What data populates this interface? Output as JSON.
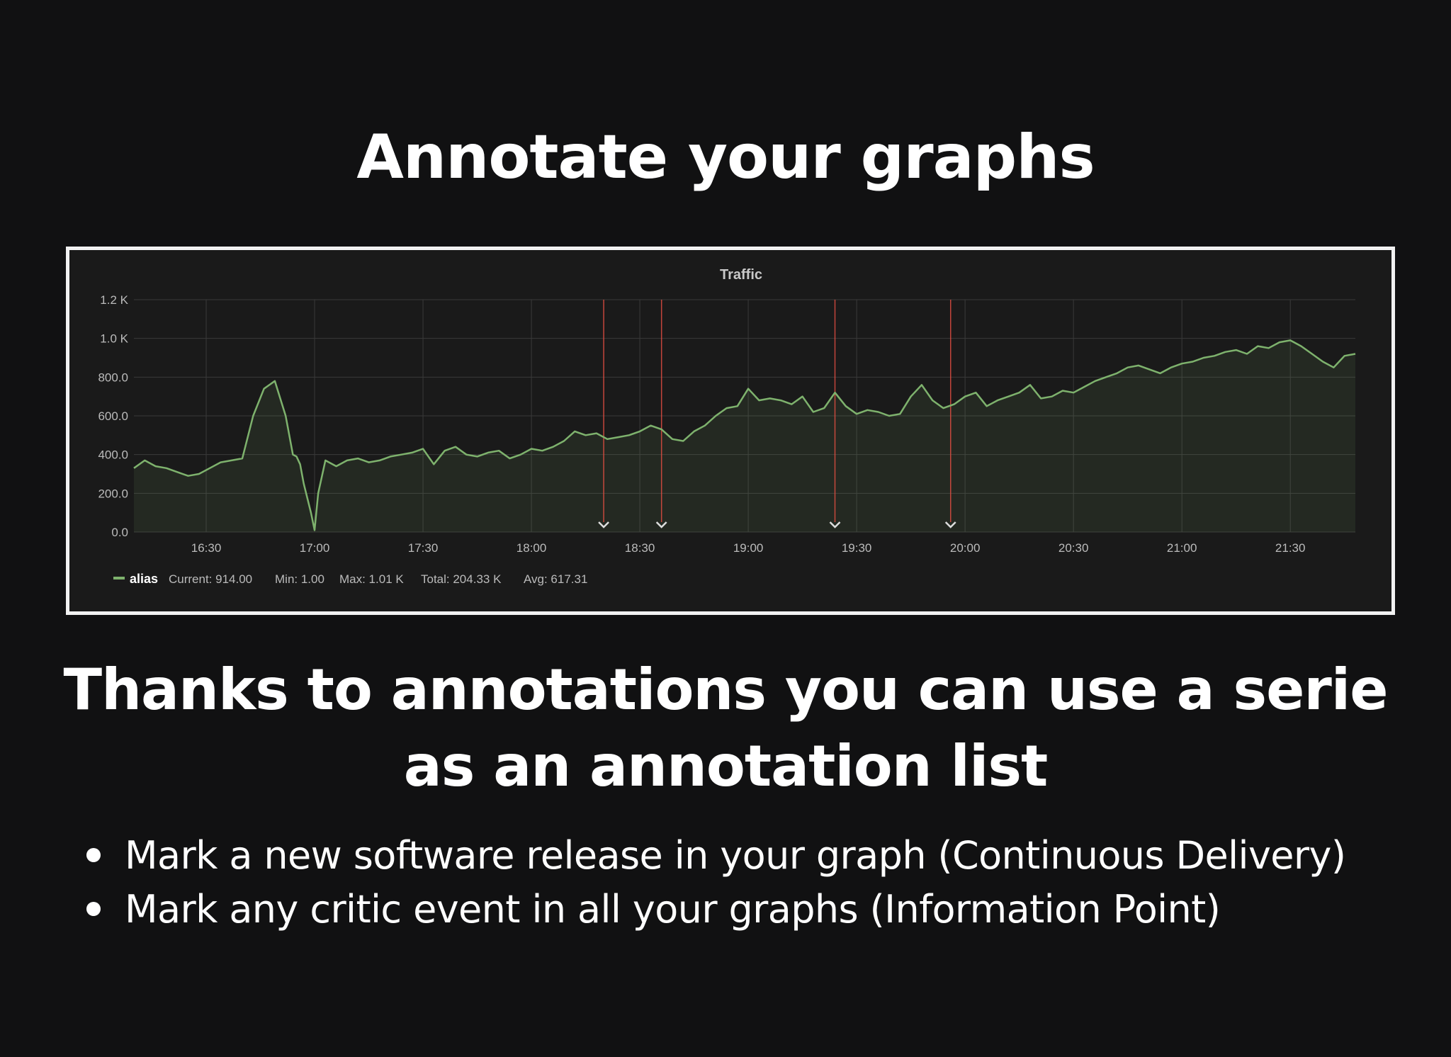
{
  "slide": {
    "title": "Annotate your graphs",
    "subtitle_lines": [
      "Thanks to annotations you can use a serie",
      "as an annotation list"
    ],
    "bullets": [
      "Mark a new software release in your graph (Continuous Delivery)",
      "Mark any critic event in all your graphs (Information Point)"
    ]
  },
  "panel": {
    "legend": {
      "series_name": "alias",
      "current": "Current: 914.00",
      "min": "Min: 1.00",
      "max": "Max: 1.01 K",
      "total": "Total: 204.33 K",
      "avg": "Avg: 617.31"
    }
  },
  "colors": {
    "background": "#111112",
    "panel_bg": "#1a1a1a",
    "series_line": "#7eb26d",
    "series_fill": "#7eb26d",
    "annotation_line": "#e24d42",
    "grid": "#3a3a3a",
    "axis_text": "#bbbbbb",
    "frame": "#f2f2f2"
  },
  "chart_data": {
    "type": "line",
    "title": "Traffic",
    "x_start": "16:10",
    "x_end": "21:48",
    "x_ticks": [
      "16:30",
      "17:00",
      "17:30",
      "18:00",
      "18:30",
      "19:00",
      "19:30",
      "20:00",
      "20:30",
      "21:00",
      "21:30"
    ],
    "y_ticks": [
      "0.0",
      "200.0",
      "400.0",
      "600.0",
      "800.0",
      "1.0 K",
      "1.2 K"
    ],
    "ylim": [
      0,
      1200
    ],
    "grid": true,
    "fill": true,
    "annotations": [
      "18:20",
      "18:36",
      "19:24",
      "19:56"
    ],
    "series": [
      {
        "name": "alias",
        "x": [
          "16:10",
          "16:13",
          "16:16",
          "16:19",
          "16:22",
          "16:25",
          "16:28",
          "16:31",
          "16:34",
          "16:37",
          "16:40",
          "16:43",
          "16:46",
          "16:49",
          "16:52",
          "16:54",
          "16:55",
          "16:56",
          "16:57",
          "16:59",
          "17:00",
          "17:01",
          "17:03",
          "17:06",
          "17:09",
          "17:12",
          "17:15",
          "17:18",
          "17:21",
          "17:24",
          "17:27",
          "17:30",
          "17:33",
          "17:36",
          "17:39",
          "17:42",
          "17:45",
          "17:48",
          "17:51",
          "17:54",
          "17:57",
          "18:00",
          "18:03",
          "18:06",
          "18:09",
          "18:12",
          "18:15",
          "18:18",
          "18:21",
          "18:24",
          "18:27",
          "18:30",
          "18:33",
          "18:36",
          "18:39",
          "18:42",
          "18:45",
          "18:48",
          "18:51",
          "18:54",
          "18:57",
          "19:00",
          "19:03",
          "19:06",
          "19:09",
          "19:12",
          "19:15",
          "19:18",
          "19:21",
          "19:24",
          "19:27",
          "19:30",
          "19:33",
          "19:36",
          "19:39",
          "19:42",
          "19:45",
          "19:48",
          "19:51",
          "19:54",
          "19:57",
          "20:00",
          "20:03",
          "20:06",
          "20:09",
          "20:12",
          "20:15",
          "20:18",
          "20:21",
          "20:24",
          "20:27",
          "20:30",
          "20:33",
          "20:36",
          "20:39",
          "20:42",
          "20:45",
          "20:48",
          "20:51",
          "20:54",
          "20:57",
          "21:00",
          "21:03",
          "21:06",
          "21:09",
          "21:12",
          "21:15",
          "21:18",
          "21:21",
          "21:24",
          "21:27",
          "21:30",
          "21:33",
          "21:36",
          "21:39",
          "21:42",
          "21:45",
          "21:48"
        ],
        "values": [
          330,
          370,
          340,
          330,
          310,
          290,
          300,
          330,
          360,
          370,
          380,
          600,
          740,
          780,
          600,
          400,
          390,
          350,
          250,
          100,
          10,
          200,
          370,
          340,
          370,
          380,
          360,
          370,
          390,
          400,
          410,
          430,
          350,
          420,
          440,
          400,
          390,
          410,
          420,
          380,
          400,
          430,
          420,
          440,
          470,
          520,
          500,
          510,
          480,
          490,
          500,
          520,
          550,
          530,
          480,
          470,
          520,
          550,
          600,
          640,
          650,
          740,
          680,
          690,
          680,
          660,
          700,
          620,
          640,
          720,
          650,
          610,
          630,
          620,
          600,
          610,
          700,
          760,
          680,
          640,
          660,
          700,
          720,
          650,
          680,
          700,
          720,
          760,
          690,
          700,
          730,
          720,
          750,
          780,
          800,
          820,
          850,
          860,
          840,
          820,
          850,
          870,
          880,
          900,
          910,
          930,
          940,
          920,
          960,
          950,
          980,
          990,
          960,
          920,
          880,
          850,
          910,
          920
        ]
      }
    ]
  }
}
